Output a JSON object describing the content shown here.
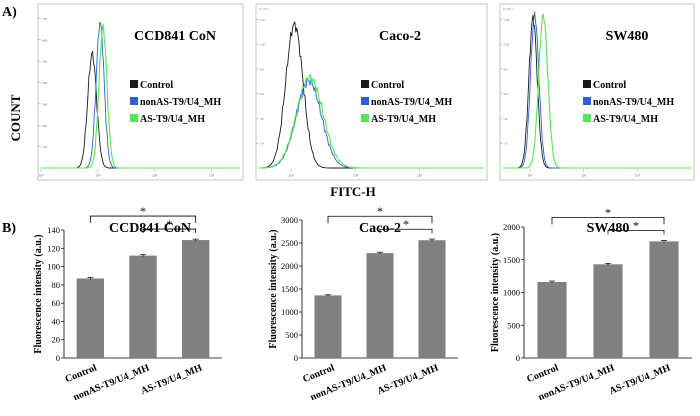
{
  "figure": {
    "panel_a_label": "A)",
    "panel_b_label": "B)",
    "shared_y_label": "COUNT",
    "shared_x_label": "FITC-H"
  },
  "colors": {
    "control": "#1a1a1a",
    "nonAS": "#2f5fd0",
    "AS": "#55e655",
    "bar": "#808080",
    "axis": "#000000",
    "sig": "#000000"
  },
  "chart_data": [
    {
      "type": "line",
      "panel": "A",
      "title": "CCD841 CoN",
      "xlabel": "FITC-H",
      "ylabel": "COUNT",
      "xscale": "log",
      "xlim": [
        1,
        10000000
      ],
      "ylim": [
        0,
        100
      ],
      "ytick_labels": [
        "100",
        "200",
        "300",
        "400",
        "500",
        "600",
        "700"
      ],
      "x_ticks": [
        1,
        100,
        10000,
        1000000
      ],
      "x_tick_labels": [
        "10⁰",
        "10²",
        "10⁴",
        "10⁶"
      ],
      "legend": [
        "Control",
        "nonAS-T9/U4_MH",
        "AS-T9/U4_MH"
      ],
      "series": [
        {
          "name": "Control",
          "color_key": "control",
          "peak_log": 1.8,
          "height": 73,
          "sigma": 0.22
        },
        {
          "name": "nonAS-T9/U4_MH",
          "color_key": "nonAS",
          "peak_log": 2.08,
          "height": 93,
          "sigma": 0.2
        },
        {
          "name": "AS-T9/U4_MH",
          "color_key": "AS",
          "peak_log": 2.18,
          "height": 90,
          "sigma": 0.2
        }
      ]
    },
    {
      "type": "line",
      "panel": "A",
      "title": "Caco-2",
      "xlabel": "FITC-H",
      "ylabel": "COUNT",
      "xscale": "log",
      "xlim": [
        1,
        10000000
      ],
      "ylim": [
        0,
        100
      ],
      "ytick_labels": [
        "20",
        "40",
        "60",
        "80",
        "100",
        "120"
      ],
      "axis_multiplier": "(x 10¹)",
      "x_ticks": [
        10,
        1000,
        100000
      ],
      "x_tick_labels": [
        "10¹",
        "10³",
        "10⁵"
      ],
      "legend": [
        "Control",
        "nonAS-T9/U4_MH",
        "AS-T9/U4_MH"
      ],
      "series": [
        {
          "name": "Control",
          "color_key": "control",
          "peak_log": 1.1,
          "height": 92,
          "sigma": 0.38
        },
        {
          "name": "nonAS-T9/U4_MH",
          "color_key": "nonAS",
          "peak_log": 1.55,
          "height": 56,
          "sigma": 0.55
        },
        {
          "name": "AS-T9/U4_MH",
          "color_key": "AS",
          "peak_log": 1.58,
          "height": 58,
          "sigma": 0.58
        }
      ]
    },
    {
      "type": "line",
      "panel": "A",
      "title": "SW480",
      "xlabel": "FITC-H",
      "ylabel": "COUNT",
      "xscale": "log",
      "xlim": [
        1,
        10000000
      ],
      "ylim": [
        0,
        100
      ],
      "ytick_labels": [
        "20",
        "40",
        "60",
        "80",
        "100",
        "120"
      ],
      "axis_multiplier": "(x 10¹)",
      "x_ticks": [
        10,
        1000,
        100000
      ],
      "x_tick_labels": [
        "10¹",
        "10³",
        "10⁵"
      ],
      "legend": [
        "Control",
        "nonAS-T9/U4_MH",
        "AS-T9/U4_MH"
      ],
      "series": [
        {
          "name": "Control",
          "color_key": "control",
          "peak_log": 1.12,
          "height": 96,
          "sigma": 0.22
        },
        {
          "name": "nonAS-T9/U4_MH",
          "color_key": "nonAS",
          "peak_log": 1.18,
          "height": 98,
          "sigma": 0.22
        },
        {
          "name": "AS-T9/U4_MH",
          "color_key": "AS",
          "peak_log": 1.5,
          "height": 98,
          "sigma": 0.24
        }
      ]
    },
    {
      "type": "bar",
      "panel": "B",
      "title": "CCD841 CoN",
      "ylabel": "Fluorescence intensity (a.u.)",
      "categories": [
        "Control",
        "nonAS-T9/U4_MH",
        "AS-T9/U4_MH"
      ],
      "values": [
        87,
        112,
        129
      ],
      "errors": [
        1,
        1,
        1
      ],
      "ylim": [
        0,
        140
      ],
      "yticks": [
        0,
        20,
        40,
        60,
        80,
        100,
        120,
        140
      ],
      "ytick_labels": [
        "0",
        "20",
        "40",
        "60",
        "80",
        "100",
        "120",
        "140"
      ],
      "significance": [
        {
          "from": 0,
          "to": 2,
          "label": "*"
        },
        {
          "from": 1,
          "to": 2,
          "label": "*"
        }
      ]
    },
    {
      "type": "bar",
      "panel": "B",
      "title": "Caco-2",
      "ylabel": "Fluorescence intensity (a.u.)",
      "categories": [
        "Control",
        "nonAS-T9/U4_MH",
        "AS-T9/U4_MH"
      ],
      "values": [
        1360,
        2280,
        2560
      ],
      "errors": [
        15,
        20,
        25
      ],
      "ylim": [
        0,
        3000
      ],
      "yticks": [
        0,
        500,
        1000,
        1500,
        2000,
        2500,
        3000
      ],
      "ytick_labels": [
        "0",
        "500",
        "1000",
        "1500",
        "2000",
        "2500",
        "3000"
      ],
      "significance": [
        {
          "from": 0,
          "to": 2,
          "label": "*"
        },
        {
          "from": 1,
          "to": 2,
          "label": "*"
        }
      ]
    },
    {
      "type": "bar",
      "panel": "B",
      "title": "SW480",
      "ylabel": "Fluorescence intensity (a.u.)",
      "categories": [
        "Control",
        "nonAS-T9/U4_MH",
        "AS-T9/U4_MH"
      ],
      "values": [
        1160,
        1430,
        1780
      ],
      "errors": [
        15,
        15,
        15
      ],
      "ylim": [
        0,
        2000
      ],
      "yticks": [
        0,
        500,
        1000,
        1500,
        2000
      ],
      "ytick_labels": [
        "0",
        "500",
        "1000",
        "1500",
        "2000"
      ],
      "significance": [
        {
          "from": 0,
          "to": 2,
          "label": "*"
        },
        {
          "from": 1,
          "to": 2,
          "label": "*"
        }
      ]
    }
  ]
}
